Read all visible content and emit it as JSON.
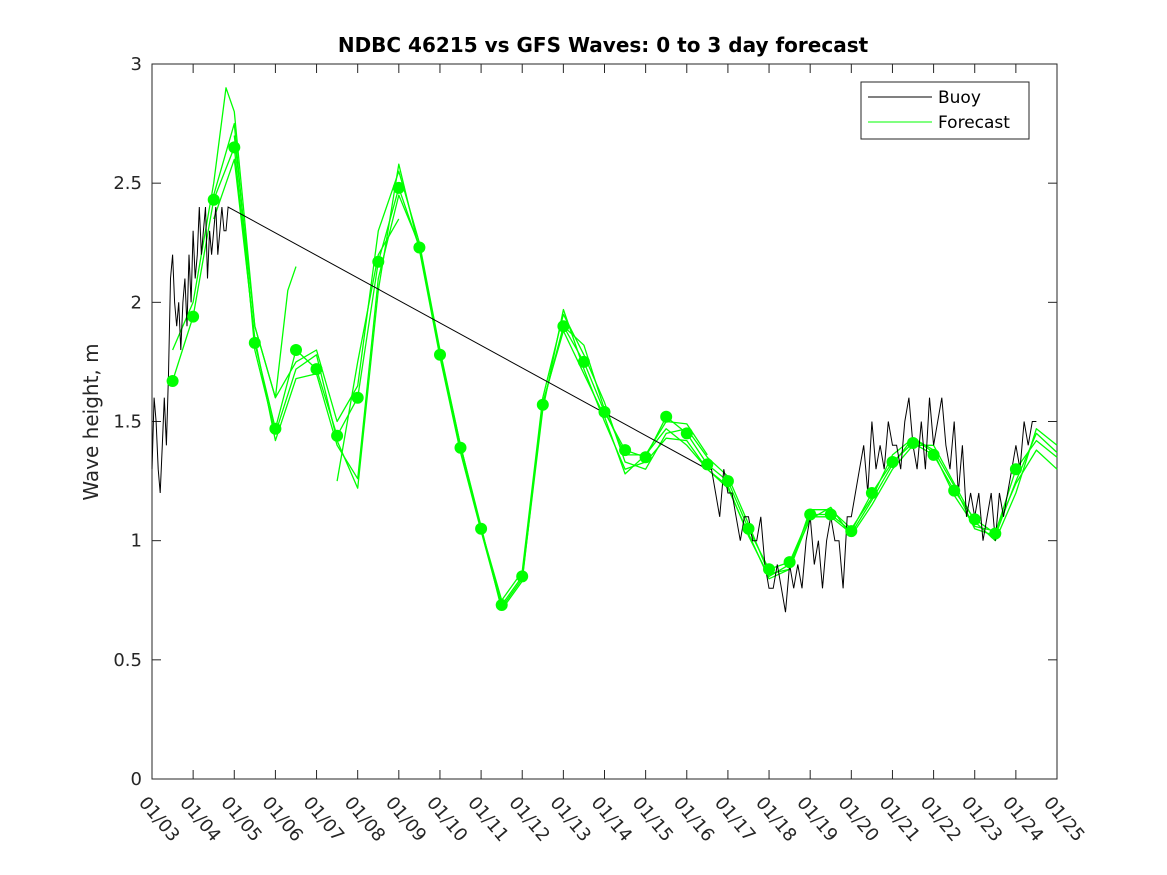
{
  "chart_data": {
    "type": "line",
    "title": "NDBC 46215 vs GFS Waves: 0 to 3 day forecast",
    "xlabel": "",
    "ylabel": "Wave height, m",
    "ylim": [
      0,
      3
    ],
    "xlim": [
      3,
      25
    ],
    "y_ticks": [
      0,
      0.5,
      1,
      1.5,
      2,
      2.5,
      3
    ],
    "y_tick_labels": [
      "0",
      "0.5",
      "1",
      "1.5",
      "2",
      "2.5",
      "3"
    ],
    "x_ticks": [
      3,
      4,
      5,
      6,
      7,
      8,
      9,
      10,
      11,
      12,
      13,
      14,
      15,
      16,
      17,
      18,
      19,
      20,
      21,
      22,
      23,
      24,
      25
    ],
    "x_tick_labels": [
      "01/03",
      "01/04",
      "01/05",
      "01/06",
      "01/07",
      "01/08",
      "01/09",
      "01/10",
      "01/11",
      "01/12",
      "01/13",
      "01/14",
      "01/15",
      "01/16",
      "01/17",
      "01/18",
      "01/19",
      "01/20",
      "01/21",
      "01/22",
      "01/23",
      "01/24",
      "01/25"
    ],
    "legend": {
      "position": "top-right",
      "entries": [
        {
          "label": "Buoy",
          "color": "#000000"
        },
        {
          "label": "Forecast",
          "color": "#00ff00"
        }
      ]
    },
    "series": [
      {
        "name": "Buoy",
        "color": "#000000",
        "x": [
          3.0,
          3.05,
          3.1,
          3.15,
          3.2,
          3.25,
          3.3,
          3.35,
          3.4,
          3.45,
          3.5,
          3.55,
          3.6,
          3.65,
          3.7,
          3.75,
          3.8,
          3.85,
          3.9,
          3.95,
          4.0,
          4.05,
          4.1,
          4.15,
          4.2,
          4.25,
          4.3,
          4.35,
          4.4,
          4.45,
          4.5,
          4.55,
          4.6,
          4.65,
          4.7,
          4.75,
          4.8,
          4.85,
          16.5,
          16.6,
          16.7,
          16.8,
          16.9,
          17.0,
          17.1,
          17.2,
          17.3,
          17.4,
          17.5,
          17.6,
          17.7,
          17.8,
          17.9,
          18.0,
          18.1,
          18.2,
          18.3,
          18.4,
          18.5,
          18.6,
          18.7,
          18.8,
          18.9,
          19.0,
          19.1,
          19.2,
          19.3,
          19.4,
          19.5,
          19.6,
          19.7,
          19.8,
          19.9,
          20.0,
          20.1,
          20.2,
          20.3,
          20.4,
          20.5,
          20.6,
          20.7,
          20.8,
          20.9,
          21.0,
          21.1,
          21.2,
          21.3,
          21.4,
          21.5,
          21.6,
          21.7,
          21.8,
          21.9,
          22.0,
          22.1,
          22.2,
          22.3,
          22.4,
          22.5,
          22.6,
          22.7,
          22.8,
          22.9,
          23.0,
          23.1,
          23.2,
          23.3,
          23.4,
          23.5,
          23.6,
          23.7,
          23.8,
          23.9,
          24.0,
          24.1,
          24.2,
          24.3,
          24.4,
          24.5
        ],
        "values": [
          1.3,
          1.6,
          1.5,
          1.3,
          1.2,
          1.4,
          1.6,
          1.4,
          1.7,
          2.1,
          2.2,
          2.0,
          1.9,
          2.0,
          1.8,
          2.0,
          2.1,
          1.9,
          2.2,
          2.0,
          2.3,
          2.1,
          2.2,
          2.4,
          2.2,
          2.3,
          2.4,
          2.1,
          2.3,
          2.2,
          2.3,
          2.4,
          2.2,
          2.3,
          2.4,
          2.3,
          2.3,
          2.4,
          1.3,
          1.3,
          1.2,
          1.1,
          1.3,
          1.2,
          1.2,
          1.1,
          1.0,
          1.1,
          1.1,
          1.0,
          1.0,
          1.1,
          0.9,
          0.8,
          0.8,
          0.9,
          0.8,
          0.7,
          0.9,
          0.8,
          0.9,
          0.8,
          1.0,
          1.1,
          0.9,
          1.0,
          0.8,
          1.0,
          1.1,
          1.0,
          1.0,
          0.8,
          1.1,
          1.1,
          1.2,
          1.3,
          1.4,
          1.2,
          1.5,
          1.3,
          1.4,
          1.3,
          1.5,
          1.4,
          1.4,
          1.3,
          1.5,
          1.6,
          1.4,
          1.3,
          1.5,
          1.3,
          1.6,
          1.4,
          1.5,
          1.6,
          1.4,
          1.3,
          1.5,
          1.2,
          1.4,
          1.1,
          1.2,
          1.1,
          1.2,
          1.0,
          1.1,
          1.2,
          1.0,
          1.2,
          1.1,
          1.2,
          1.3,
          1.4,
          1.3,
          1.5,
          1.4,
          1.5,
          1.5
        ]
      },
      {
        "name": "Forecast",
        "color": "#00ff00",
        "markers": {
          "x": [
            3.5,
            4.0,
            4.5,
            5.0,
            5.5,
            6.0,
            6.5,
            7.0,
            7.5,
            8.0,
            8.5,
            9.0,
            9.5,
            10.0,
            10.5,
            11.0,
            11.5,
            12.0,
            12.5,
            13.0,
            13.5,
            14.0,
            14.5,
            15.0,
            15.5,
            16.0,
            16.5,
            17.0,
            17.5,
            18.0,
            18.5,
            19.0,
            19.5,
            20.0,
            20.5,
            21.0,
            21.5,
            22.0,
            22.5,
            23.0,
            23.5,
            24.0
          ],
          "values": [
            1.67,
            1.94,
            2.43,
            2.65,
            1.83,
            1.47,
            1.8,
            1.72,
            1.44,
            1.6,
            2.17,
            2.48,
            2.23,
            1.78,
            1.39,
            1.05,
            0.73,
            0.85,
            1.57,
            1.9,
            1.75,
            1.54,
            1.38,
            1.35,
            1.52,
            1.45,
            1.32,
            1.25,
            1.05,
            0.88,
            0.91,
            1.11,
            1.11,
            1.04,
            1.2,
            1.33,
            1.41,
            1.36,
            1.21,
            1.09,
            1.03,
            1.3
          ]
        },
        "runs": [
          {
            "x": [
              3.5,
              4.0,
              4.5,
              5.0,
              5.5,
              6.0,
              6.5,
              7.0,
              7.5,
              8.0,
              8.5,
              9.0,
              9.5,
              10.0,
              10.5,
              11.0,
              11.5,
              12.0,
              12.5,
              13.0,
              13.5,
              14.0,
              14.5,
              15.0,
              15.5,
              16.0,
              16.5,
              17.0,
              17.5,
              18.0,
              18.5,
              19.0,
              19.5,
              20.0,
              20.5,
              21.0,
              21.5,
              22.0,
              22.5,
              23.0,
              23.5,
              24.0,
              24.5,
              25.0
            ],
            "values": [
              1.67,
              1.94,
              2.43,
              2.65,
              1.83,
              1.47,
              1.8,
              1.72,
              1.44,
              1.6,
              2.17,
              2.48,
              2.23,
              1.78,
              1.39,
              1.05,
              0.73,
              0.85,
              1.57,
              1.9,
              1.75,
              1.54,
              1.38,
              1.35,
              1.52,
              1.45,
              1.32,
              1.25,
              1.05,
              0.88,
              0.91,
              1.11,
              1.11,
              1.04,
              1.2,
              1.33,
              1.41,
              1.36,
              1.21,
              1.09,
              1.03,
              1.3,
              1.42,
              1.35
            ]
          },
          {
            "x": [
              3.5,
              4.0,
              4.5,
              4.8,
              5.0,
              5.5,
              6.0,
              6.5,
              7.0,
              7.5,
              8.0,
              8.5,
              9.0,
              9.5,
              10.0,
              10.5,
              11.0,
              11.5,
              12.0,
              12.5,
              13.0,
              13.5,
              14.0,
              14.5,
              15.0,
              15.5,
              16.0,
              16.5,
              17.0,
              17.5,
              18.0,
              18.5,
              19.0,
              19.5,
              20.0,
              20.5,
              21.0,
              21.5,
              22.0,
              22.5,
              23.0,
              23.5,
              24.0,
              24.5,
              25.0
            ],
            "values": [
              1.8,
              2.0,
              2.5,
              2.9,
              2.8,
              1.9,
              1.6,
              1.75,
              1.8,
              1.5,
              1.65,
              2.3,
              2.55,
              2.25,
              1.8,
              1.4,
              1.05,
              0.75,
              0.87,
              1.6,
              1.95,
              1.78,
              1.58,
              1.33,
              1.3,
              1.45,
              1.47,
              1.35,
              1.27,
              1.07,
              0.86,
              0.88,
              1.13,
              1.13,
              1.05,
              1.18,
              1.36,
              1.43,
              1.38,
              1.23,
              1.05,
              1.02,
              1.25,
              1.45,
              1.37
            ]
          },
          {
            "x": [
              4.5,
              5.0,
              5.5,
              6.0,
              6.5,
              7.0,
              7.5,
              8.0,
              8.5,
              9.0,
              9.5,
              10.0,
              10.5,
              11.0,
              11.5,
              12.0,
              12.5,
              13.0,
              13.5,
              14.0,
              14.5,
              15.0,
              15.5,
              16.0,
              16.5,
              17.0,
              17.5,
              18.0,
              18.5,
              19.0,
              19.5,
              20.0,
              20.5,
              21.0,
              21.5,
              22.0,
              22.5,
              23.0,
              23.5,
              24.0,
              24.5,
              25.0
            ],
            "values": [
              2.45,
              2.75,
              1.8,
              1.45,
              1.72,
              1.78,
              1.42,
              1.22,
              2.05,
              2.58,
              2.22,
              1.77,
              1.37,
              1.04,
              0.72,
              0.84,
              1.55,
              1.97,
              1.72,
              1.5,
              1.3,
              1.33,
              1.43,
              1.42,
              1.3,
              1.23,
              1.02,
              0.85,
              0.9,
              1.09,
              1.14,
              1.02,
              1.15,
              1.3,
              1.4,
              1.4,
              1.24,
              1.08,
              1.0,
              1.2,
              1.47,
              1.4
            ]
          },
          {
            "x": [
              4.5,
              5.0,
              5.5,
              6.0,
              6.5,
              7.0,
              7.5,
              8.0,
              8.5,
              9.0,
              9.5,
              10.0,
              10.5,
              11.0,
              11.5,
              12.0,
              12.5,
              13.0,
              13.5,
              14.0,
              14.5,
              15.0,
              15.5,
              16.0,
              16.5,
              17.0,
              17.5,
              18.0,
              18.5,
              19.0,
              19.5,
              20.0,
              20.5,
              21.0,
              21.5,
              22.0,
              22.5,
              23.0,
              23.5,
              24.0,
              24.5,
              25.0
            ],
            "values": [
              2.35,
              2.6,
              1.85,
              1.42,
              1.68,
              1.7,
              1.4,
              1.26,
              2.1,
              2.45,
              2.24,
              1.79,
              1.4,
              1.06,
              0.71,
              0.83,
              1.58,
              1.88,
              1.7,
              1.52,
              1.28,
              1.36,
              1.47,
              1.4,
              1.3,
              1.22,
              1.03,
              0.84,
              0.88,
              1.1,
              1.1,
              1.03,
              1.17,
              1.32,
              1.43,
              1.37,
              1.19,
              1.06,
              1.04,
              1.24,
              1.38,
              1.3
            ]
          },
          {
            "x": [
              5.0,
              5.5,
              6.0,
              6.3,
              6.5
            ],
            "values": [
              2.7,
              1.9,
              1.6,
              2.05,
              2.15
            ]
          },
          {
            "x": [
              7.5,
              8.0,
              8.5,
              9.0
            ],
            "values": [
              1.25,
              1.75,
              2.2,
              2.35
            ]
          },
          {
            "x": [
              13.0,
              13.5,
              14.0,
              14.5,
              15.0,
              15.5,
              16.0,
              16.5
            ],
            "values": [
              1.9,
              1.82,
              1.55,
              1.36,
              1.36,
              1.5,
              1.49,
              1.36
            ]
          }
        ]
      }
    ]
  }
}
